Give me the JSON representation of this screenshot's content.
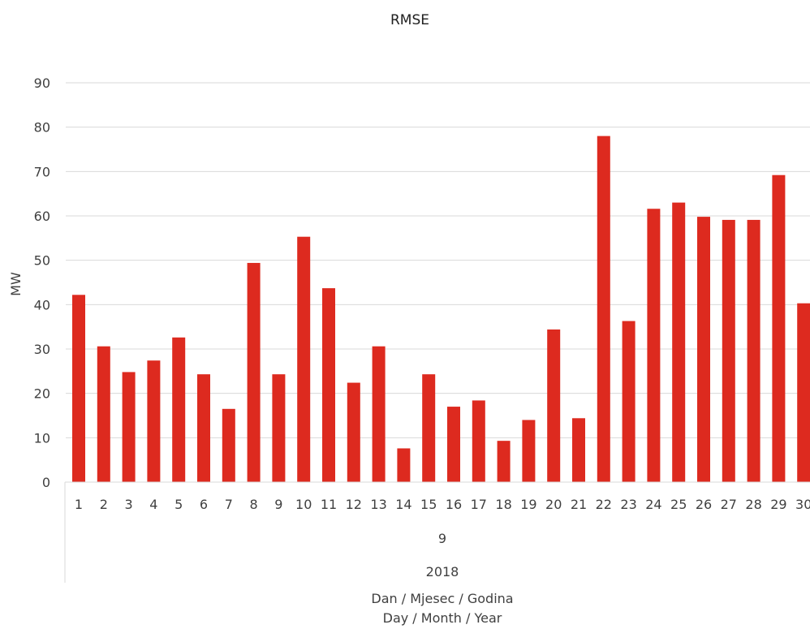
{
  "chart_data": {
    "type": "bar",
    "title": "RMSE",
    "ylabel": "MW",
    "ylim": [
      0,
      90
    ],
    "yticks": [
      0,
      10,
      20,
      30,
      40,
      50,
      60,
      70,
      80,
      90
    ],
    "grid": true,
    "legend": "none",
    "categories": [
      "1",
      "2",
      "3",
      "4",
      "5",
      "6",
      "7",
      "8",
      "9",
      "10",
      "11",
      "12",
      "13",
      "14",
      "15",
      "16",
      "17",
      "18",
      "19",
      "20",
      "21",
      "22",
      "23",
      "24",
      "25",
      "26",
      "27",
      "28",
      "29",
      "30"
    ],
    "values": [
      42.2,
      30.6,
      24.8,
      27.4,
      32.6,
      24.3,
      16.5,
      49.4,
      24.3,
      55.3,
      43.7,
      22.4,
      30.6,
      7.6,
      24.3,
      17.0,
      18.4,
      9.3,
      14.0,
      34.4,
      14.4,
      78.0,
      36.3,
      61.6,
      63.0,
      59.8,
      59.1,
      59.1,
      69.2,
      40.3
    ],
    "group_levels": {
      "month": "9",
      "year": "2018"
    },
    "xlabel_lines": [
      "Dan / Mjesec / Godina",
      "Day / Month / Year"
    ],
    "colors": {
      "bar": "#dd2a1f",
      "grid": "#d9d9d9",
      "text": "#404040",
      "title": "#1f1f1f"
    }
  }
}
